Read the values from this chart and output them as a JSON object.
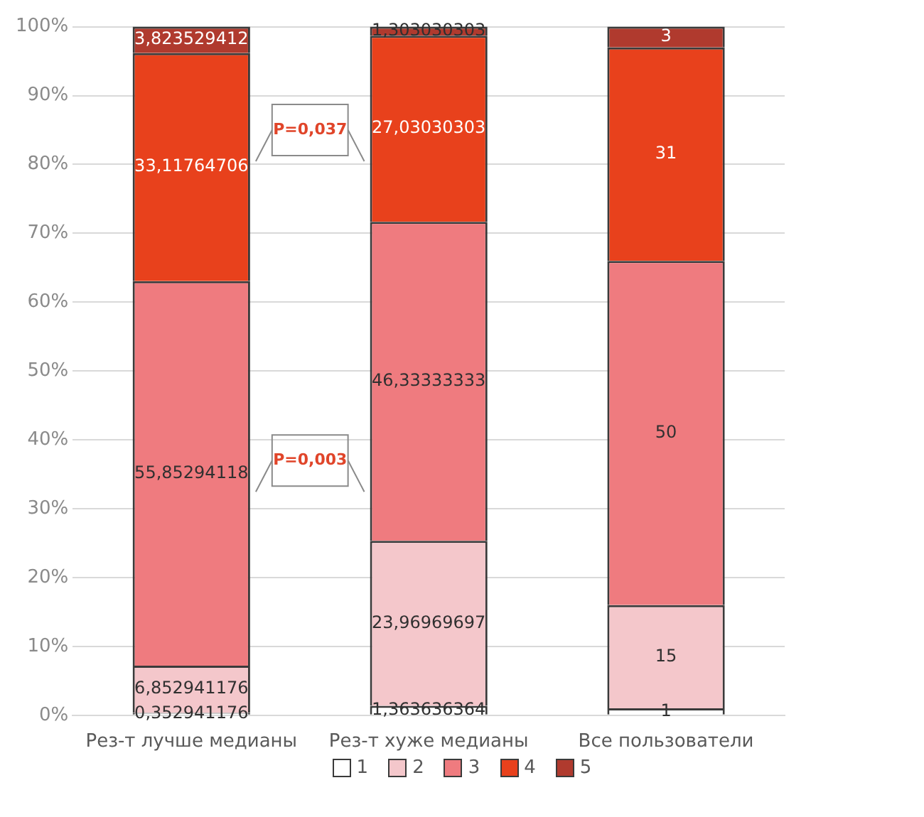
{
  "chart_data": {
    "type": "bar",
    "stacked": true,
    "categories": [
      "Рез-т лучше медианы",
      "Рез-т хуже медианы",
      "Все пользователи"
    ],
    "series": [
      {
        "name": "1",
        "color": "#ffffff",
        "values": [
          0.352941176,
          1.363636364,
          1
        ],
        "value_labels": [
          "0,352941176",
          "1,363636364",
          "1"
        ]
      },
      {
        "name": "2",
        "color": "#f4c7cb",
        "values": [
          6.852941176,
          23.96969697,
          15
        ],
        "value_labels": [
          "6,852941176",
          "23,96969697",
          "15"
        ]
      },
      {
        "name": "3",
        "color": "#ef7b7f",
        "values": [
          55.85294118,
          46.33333333,
          50
        ],
        "value_labels": [
          "55,85294118",
          "46,33333333",
          "50"
        ]
      },
      {
        "name": "4",
        "color": "#e8411c",
        "values": [
          33.11764706,
          27.03030303,
          31
        ],
        "value_labels": [
          "33,11764706",
          "27,03030303",
          "31"
        ]
      },
      {
        "name": "5",
        "color": "#b03a2e",
        "values": [
          3.823529412,
          1.303030303,
          3
        ],
        "value_labels": [
          "3,823529412",
          "1,303030303",
          "3"
        ]
      }
    ],
    "ylim": [
      0,
      100
    ],
    "yticks": [
      {
        "value": 0,
        "label": "0%"
      },
      {
        "value": 10,
        "label": "10%"
      },
      {
        "value": 20,
        "label": "20%"
      },
      {
        "value": 30,
        "label": "30%"
      },
      {
        "value": 40,
        "label": "40%"
      },
      {
        "value": 50,
        "label": "50%"
      },
      {
        "value": 60,
        "label": "60%"
      },
      {
        "value": 70,
        "label": "70%"
      },
      {
        "value": 80,
        "label": "80%"
      },
      {
        "value": 90,
        "label": "90%"
      },
      {
        "value": 100,
        "label": "100%"
      }
    ],
    "grid": "y",
    "legend": "bottom",
    "annotations": [
      "P=0,037",
      "P=0,003"
    ]
  }
}
